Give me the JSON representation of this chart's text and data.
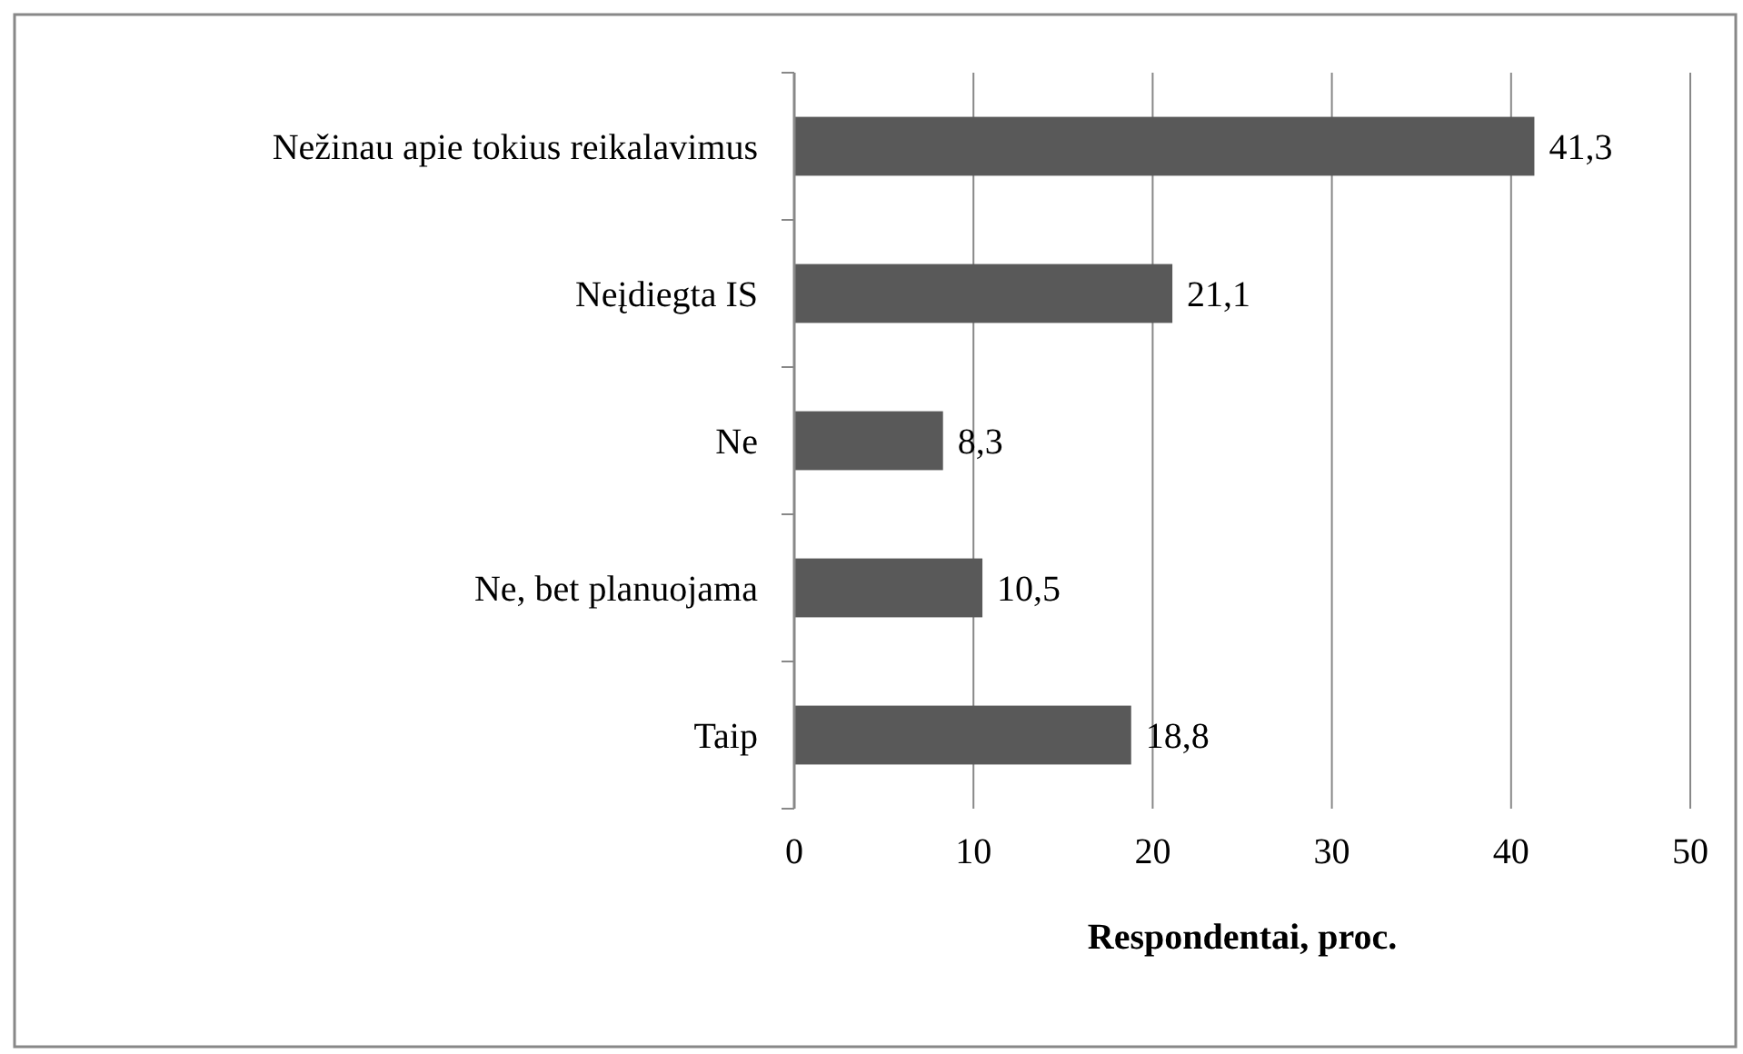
{
  "chart_data": {
    "type": "bar",
    "orientation": "horizontal",
    "xlabel": "Respondentai, proc.",
    "categories": [
      "Nežinau apie tokius reikalavimus",
      "Neįdiegta IS",
      "Ne",
      "Ne, bet planuojama",
      "Taip"
    ],
    "values": [
      41.3,
      21.1,
      8.3,
      10.5,
      18.8
    ],
    "value_labels": [
      "41,3",
      "21,1",
      "8,3",
      "10,5",
      "18,8"
    ],
    "color": "#595959",
    "xlim": [
      0,
      50
    ],
    "xticks": [
      0,
      10,
      20,
      30,
      40,
      50
    ],
    "grid": "x"
  }
}
